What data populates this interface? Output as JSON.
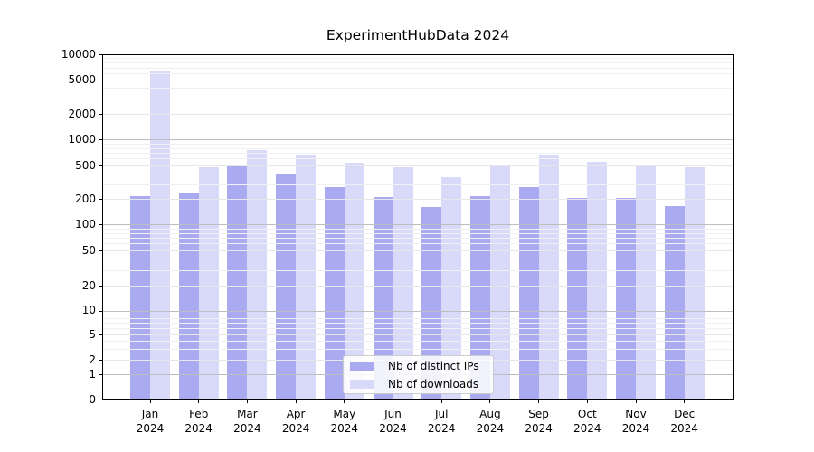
{
  "chart_data": {
    "type": "bar",
    "title": "ExperimentHubData 2024",
    "categories": [
      "Jan",
      "Feb",
      "Mar",
      "Apr",
      "May",
      "Jun",
      "Jul",
      "Aug",
      "Sep",
      "Oct",
      "Nov",
      "Dec"
    ],
    "x_year": "2024",
    "series": [
      {
        "name": "Nb of distinct IPs",
        "color": "#aaaaf0",
        "values": [
          215,
          235,
          510,
          400,
          275,
          210,
          160,
          215,
          275,
          205,
          205,
          165
        ]
      },
      {
        "name": "Nb of downloads",
        "color": "#d9d9fa",
        "values": [
          6500,
          480,
          760,
          650,
          540,
          475,
          365,
          495,
          660,
          545,
          490,
          470
        ]
      }
    ],
    "y_scale": "symlog",
    "ylim": [
      0,
      10000
    ],
    "y_ticks": [
      0,
      1,
      2,
      5,
      10,
      20,
      50,
      100,
      200,
      500,
      1000,
      2000,
      5000,
      10000
    ],
    "y_tick_labels": [
      "0",
      "1",
      "2",
      "5",
      "10",
      "20",
      "50",
      "100",
      "200",
      "500",
      "1000",
      "2000",
      "5000",
      "10000"
    ],
    "grid": true,
    "legend": {
      "position": "lower center",
      "labels": [
        "Nb of distinct IPs",
        "Nb of downloads"
      ]
    }
  }
}
